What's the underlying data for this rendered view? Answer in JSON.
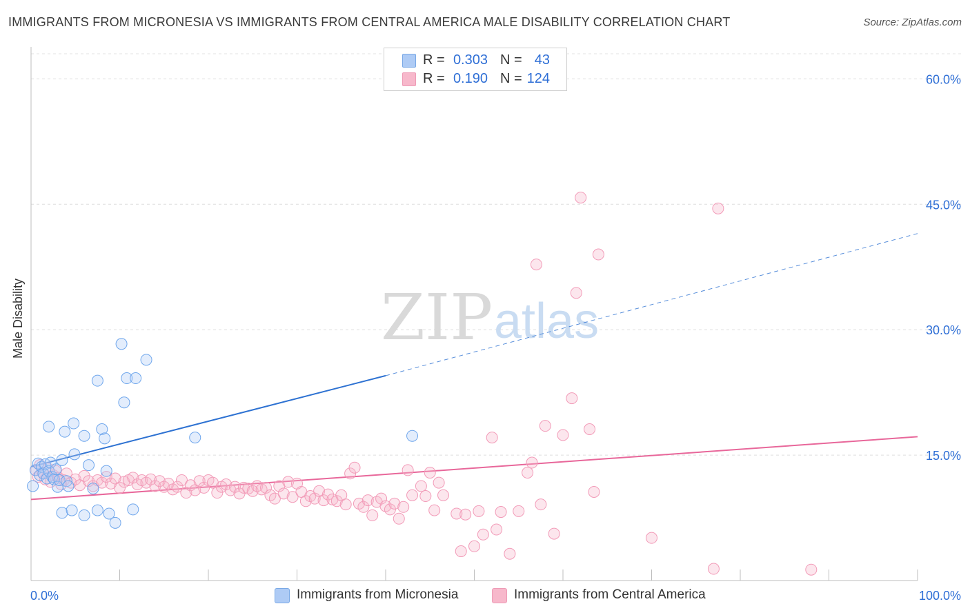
{
  "title": "IMMIGRANTS FROM MICRONESIA VS IMMIGRANTS FROM CENTRAL AMERICA MALE DISABILITY CORRELATION CHART",
  "source": "Source: ZipAtlas.com",
  "watermark": {
    "zip": "ZIP",
    "atlas": "atlas"
  },
  "legend_top": [
    {
      "swatch_color": "#aecbf5",
      "r_label": "R =",
      "r_value": "0.303",
      "n_label": "N =",
      "n_value": "43"
    },
    {
      "swatch_color": "#f7b8cb",
      "r_label": "R =",
      "r_value": "0.190",
      "n_label": "N =",
      "n_value": "124"
    }
  ],
  "legend_bottom": [
    {
      "label": "Immigrants from Micronesia",
      "color": "#aecbf5"
    },
    {
      "label": "Immigrants from Central America",
      "color": "#f7b8cb"
    }
  ],
  "chart_data": {
    "type": "scatter",
    "title": "IMMIGRANTS FROM MICRONESIA VS IMMIGRANTS FROM CENTRAL AMERICA MALE DISABILITY CORRELATION CHART",
    "xlabel": "",
    "ylabel": "Male Disability",
    "xlim": [
      0,
      100
    ],
    "ylim": [
      0,
      63
    ],
    "x_tick_labels": [
      {
        "value": 0,
        "label": "0.0%"
      },
      {
        "value": 100,
        "label": "100.0%"
      }
    ],
    "x_minor_ticks": [
      0,
      10,
      20,
      30,
      40,
      50,
      60,
      70,
      80,
      90,
      100
    ],
    "y_tick_labels": [
      {
        "value": 15,
        "label": "15.0%"
      },
      {
        "value": 30,
        "label": "30.0%"
      },
      {
        "value": 45,
        "label": "45.0%"
      },
      {
        "value": 60,
        "label": "60.0%"
      }
    ],
    "grid": true,
    "legend_position": "top-center",
    "colors": {
      "micronesia": "#6ea6ec",
      "micronesia_line": "#2e72d2",
      "central_america": "#f29bb8",
      "central_america_line": "#e8679a"
    },
    "series": [
      {
        "name": "Immigrants from Micronesia",
        "color": "#6ea6ec",
        "trend": {
          "x0": 0,
          "y0": 13.6,
          "x1": 40,
          "y1": 24.5,
          "dashed_to_x": 100,
          "dashed_to_y": 41.5
        },
        "points": [
          [
            0.5,
            13.2
          ],
          [
            0.8,
            14.0
          ],
          [
            1.0,
            12.6
          ],
          [
            1.2,
            13.6
          ],
          [
            1.4,
            12.8
          ],
          [
            1.6,
            13.9
          ],
          [
            1.8,
            12.2
          ],
          [
            2.0,
            13.1
          ],
          [
            2.2,
            14.1
          ],
          [
            2.4,
            12.4
          ],
          [
            2.6,
            12.1
          ],
          [
            2.8,
            13.3
          ],
          [
            3.0,
            11.2
          ],
          [
            3.2,
            12.0
          ],
          [
            3.5,
            14.4
          ],
          [
            3.8,
            17.8
          ],
          [
            4.0,
            11.9
          ],
          [
            3.5,
            8.1
          ],
          [
            4.2,
            11.3
          ],
          [
            4.8,
            18.8
          ],
          [
            4.9,
            15.1
          ],
          [
            4.6,
            8.4
          ],
          [
            6.0,
            17.3
          ],
          [
            6.5,
            13.8
          ],
          [
            6.0,
            7.8
          ],
          [
            7.0,
            11.0
          ],
          [
            7.5,
            8.4
          ],
          [
            7.5,
            23.9
          ],
          [
            8.0,
            18.1
          ],
          [
            8.3,
            17.0
          ],
          [
            8.5,
            13.1
          ],
          [
            8.8,
            8.0
          ],
          [
            9.5,
            6.9
          ],
          [
            10.5,
            21.3
          ],
          [
            10.2,
            28.3
          ],
          [
            10.8,
            24.2
          ],
          [
            11.5,
            8.5
          ],
          [
            11.8,
            24.2
          ],
          [
            13.0,
            26.4
          ],
          [
            18.5,
            17.1
          ],
          [
            43.0,
            17.3
          ],
          [
            2.0,
            18.4
          ],
          [
            0.2,
            11.3
          ]
        ]
      },
      {
        "name": "Immigrants from Central America",
        "color": "#f29bb8",
        "trend": {
          "x0": 0,
          "y0": 9.7,
          "x1": 100,
          "y1": 17.2
        },
        "points": [
          [
            0.5,
            13.2
          ],
          [
            0.8,
            12.4
          ],
          [
            1.0,
            13.8
          ],
          [
            1.3,
            12.9
          ],
          [
            1.6,
            12.1
          ],
          [
            1.9,
            13.4
          ],
          [
            2.2,
            11.8
          ],
          [
            2.5,
            12.6
          ],
          [
            2.8,
            13.1
          ],
          [
            3.1,
            12.3
          ],
          [
            3.4,
            11.5
          ],
          [
            3.7,
            12.0
          ],
          [
            4.0,
            12.8
          ],
          [
            4.5,
            11.7
          ],
          [
            5.0,
            12.1
          ],
          [
            5.5,
            11.4
          ],
          [
            6.0,
            12.5
          ],
          [
            6.5,
            11.9
          ],
          [
            7.0,
            11.3
          ],
          [
            7.5,
            12.0
          ],
          [
            8.0,
            11.7
          ],
          [
            8.5,
            12.4
          ],
          [
            9.0,
            11.6
          ],
          [
            9.5,
            12.2
          ],
          [
            10.0,
            11.1
          ],
          [
            10.5,
            11.8
          ],
          [
            11.0,
            12.0
          ],
          [
            11.5,
            12.3
          ],
          [
            12.0,
            11.5
          ],
          [
            12.5,
            12.0
          ],
          [
            13.0,
            11.7
          ],
          [
            13.5,
            12.1
          ],
          [
            14.0,
            11.3
          ],
          [
            14.5,
            11.9
          ],
          [
            15.0,
            11.2
          ],
          [
            15.5,
            11.6
          ],
          [
            16.0,
            10.9
          ],
          [
            16.5,
            11.2
          ],
          [
            17.0,
            12.0
          ],
          [
            17.5,
            10.5
          ],
          [
            18.0,
            11.4
          ],
          [
            18.5,
            10.8
          ],
          [
            19.0,
            11.9
          ],
          [
            19.5,
            11.1
          ],
          [
            20.0,
            12.0
          ],
          [
            20.5,
            11.7
          ],
          [
            21.0,
            10.5
          ],
          [
            21.5,
            11.2
          ],
          [
            22.0,
            11.5
          ],
          [
            22.5,
            10.8
          ],
          [
            23.0,
            11.2
          ],
          [
            23.5,
            10.4
          ],
          [
            24.0,
            11.1
          ],
          [
            24.5,
            11.0
          ],
          [
            25.0,
            10.7
          ],
          [
            25.5,
            11.3
          ],
          [
            26.0,
            10.9
          ],
          [
            26.5,
            11.1
          ],
          [
            27.0,
            10.2
          ],
          [
            27.5,
            9.8
          ],
          [
            28.0,
            11.3
          ],
          [
            28.5,
            10.4
          ],
          [
            29.0,
            11.8
          ],
          [
            29.5,
            10.0
          ],
          [
            30.0,
            11.6
          ],
          [
            30.5,
            10.6
          ],
          [
            31.0,
            9.5
          ],
          [
            31.5,
            10.1
          ],
          [
            32.0,
            9.8
          ],
          [
            32.5,
            10.7
          ],
          [
            33.0,
            9.6
          ],
          [
            33.5,
            10.3
          ],
          [
            34.0,
            9.7
          ],
          [
            34.5,
            9.5
          ],
          [
            35.0,
            10.2
          ],
          [
            35.5,
            9.1
          ],
          [
            36.0,
            12.8
          ],
          [
            36.5,
            13.5
          ],
          [
            37.0,
            9.2
          ],
          [
            37.5,
            8.8
          ],
          [
            38.0,
            9.6
          ],
          [
            38.5,
            7.8
          ],
          [
            39.0,
            9.4
          ],
          [
            39.5,
            9.8
          ],
          [
            40.0,
            8.9
          ],
          [
            40.5,
            8.5
          ],
          [
            41.0,
            9.2
          ],
          [
            41.5,
            7.4
          ],
          [
            42.0,
            8.8
          ],
          [
            42.5,
            13.2
          ],
          [
            43.0,
            10.2
          ],
          [
            44.0,
            11.3
          ],
          [
            44.5,
            10.1
          ],
          [
            45.0,
            12.9
          ],
          [
            45.5,
            8.4
          ],
          [
            46.0,
            11.7
          ],
          [
            46.5,
            10.2
          ],
          [
            48.0,
            8.0
          ],
          [
            48.5,
            3.5
          ],
          [
            49.0,
            7.9
          ],
          [
            50.0,
            4.1
          ],
          [
            50.5,
            8.3
          ],
          [
            51.0,
            5.5
          ],
          [
            52.0,
            17.1
          ],
          [
            52.5,
            6.1
          ],
          [
            53.0,
            8.2
          ],
          [
            54.0,
            3.2
          ],
          [
            55.0,
            8.3
          ],
          [
            56.0,
            12.9
          ],
          [
            56.5,
            14.1
          ],
          [
            57.0,
            37.8
          ],
          [
            57.5,
            9.1
          ],
          [
            58.0,
            18.5
          ],
          [
            59.0,
            5.6
          ],
          [
            60.0,
            17.4
          ],
          [
            61.0,
            21.8
          ],
          [
            61.5,
            34.4
          ],
          [
            62.0,
            45.8
          ],
          [
            63.0,
            18.1
          ],
          [
            63.5,
            10.6
          ],
          [
            64.0,
            39.0
          ],
          [
            70.0,
            5.1
          ],
          [
            77.0,
            1.4
          ],
          [
            77.5,
            44.5
          ],
          [
            88.0,
            1.3
          ]
        ]
      }
    ]
  }
}
